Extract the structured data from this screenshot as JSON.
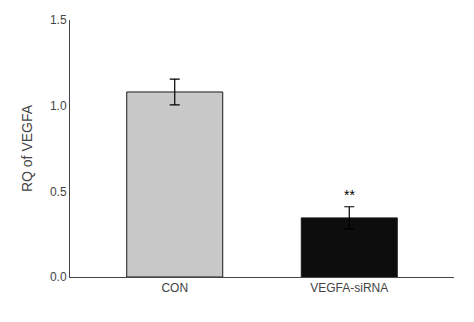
{
  "chart_data": {
    "type": "bar",
    "categories": [
      "CON",
      "VEGFA-siRNA"
    ],
    "values": [
      1.08,
      0.345
    ],
    "errors": [
      0.075,
      0.065
    ],
    "colors": [
      "#c8c8c8",
      "#0d0d0d"
    ],
    "ylabel": "RQ of VEGFA",
    "ylim": [
      0,
      1.5
    ],
    "yticks": [
      {
        "value": 0,
        "label": "0.0"
      },
      0.5,
      {
        "value": 1,
        "label": "1.0"
      },
      1.5
    ],
    "annotations": [
      {
        "x": "VEGFA-siRNA",
        "text": "**"
      }
    ],
    "grid": false
  }
}
